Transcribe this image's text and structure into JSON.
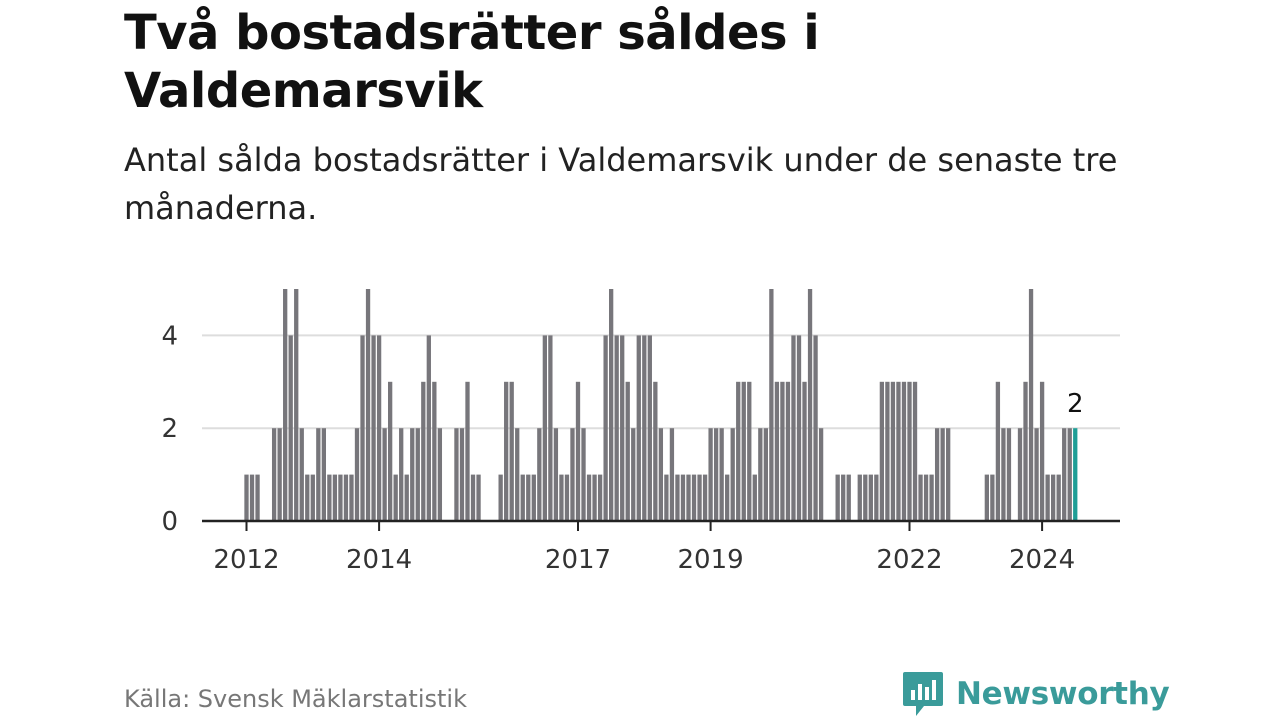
{
  "header": {
    "title": "Två bostadsrätter såldes i Valdemarsvik",
    "subtitle": "Antal sålda bostadsrätter i Valdemarsvik under de senaste tre månaderna."
  },
  "footer": {
    "source": "Källa: Svensk Mäklarstatistik",
    "brand": "Newsworthy"
  },
  "colors": {
    "bar": "#77767b",
    "highlight": "#1f9e96",
    "grid": "#dddddd",
    "axis": "#222222",
    "brand": "#3a9b9a"
  },
  "chart_data": {
    "type": "bar",
    "title": "Antal sålda bostadsrätter i Valdemarsvik",
    "xlabel": "",
    "ylabel": "",
    "x_start": "2012-01",
    "ylim": [
      0,
      5
    ],
    "yticks": [
      0,
      2,
      4
    ],
    "grid": true,
    "xticks": [
      {
        "label": "2012",
        "index": 0
      },
      {
        "label": "2014",
        "index": 24
      },
      {
        "label": "2017",
        "index": 60
      },
      {
        "label": "2019",
        "index": 84
      },
      {
        "label": "2022",
        "index": 120
      },
      {
        "label": "2024",
        "index": 144
      }
    ],
    "values": [
      1,
      1,
      1,
      0,
      0,
      2,
      2,
      5,
      4,
      5,
      2,
      1,
      1,
      2,
      2,
      1,
      1,
      1,
      1,
      1,
      2,
      4,
      5,
      4,
      4,
      2,
      3,
      1,
      2,
      1,
      2,
      2,
      3,
      4,
      3,
      2,
      0,
      0,
      2,
      2,
      3,
      1,
      1,
      0,
      0,
      0,
      1,
      3,
      3,
      2,
      1,
      1,
      1,
      2,
      4,
      4,
      2,
      1,
      1,
      2,
      3,
      2,
      1,
      1,
      1,
      4,
      5,
      4,
      4,
      3,
      2,
      4,
      4,
      4,
      3,
      2,
      1,
      2,
      1,
      1,
      1,
      1,
      1,
      1,
      2,
      2,
      2,
      1,
      2,
      3,
      3,
      3,
      1,
      2,
      2,
      5,
      3,
      3,
      3,
      4,
      4,
      3,
      5,
      4,
      2,
      0,
      0,
      1,
      1,
      1,
      0,
      1,
      1,
      1,
      1,
      3,
      3,
      3,
      3,
      3,
      3,
      3,
      1,
      1,
      1,
      2,
      2,
      2,
      0,
      0,
      0,
      0,
      0,
      0,
      1,
      1,
      3,
      2,
      2,
      0,
      2,
      3,
      5,
      2,
      3,
      1,
      1,
      1,
      2,
      2,
      2
    ],
    "highlight_index": 150,
    "highlight_label": "2"
  }
}
